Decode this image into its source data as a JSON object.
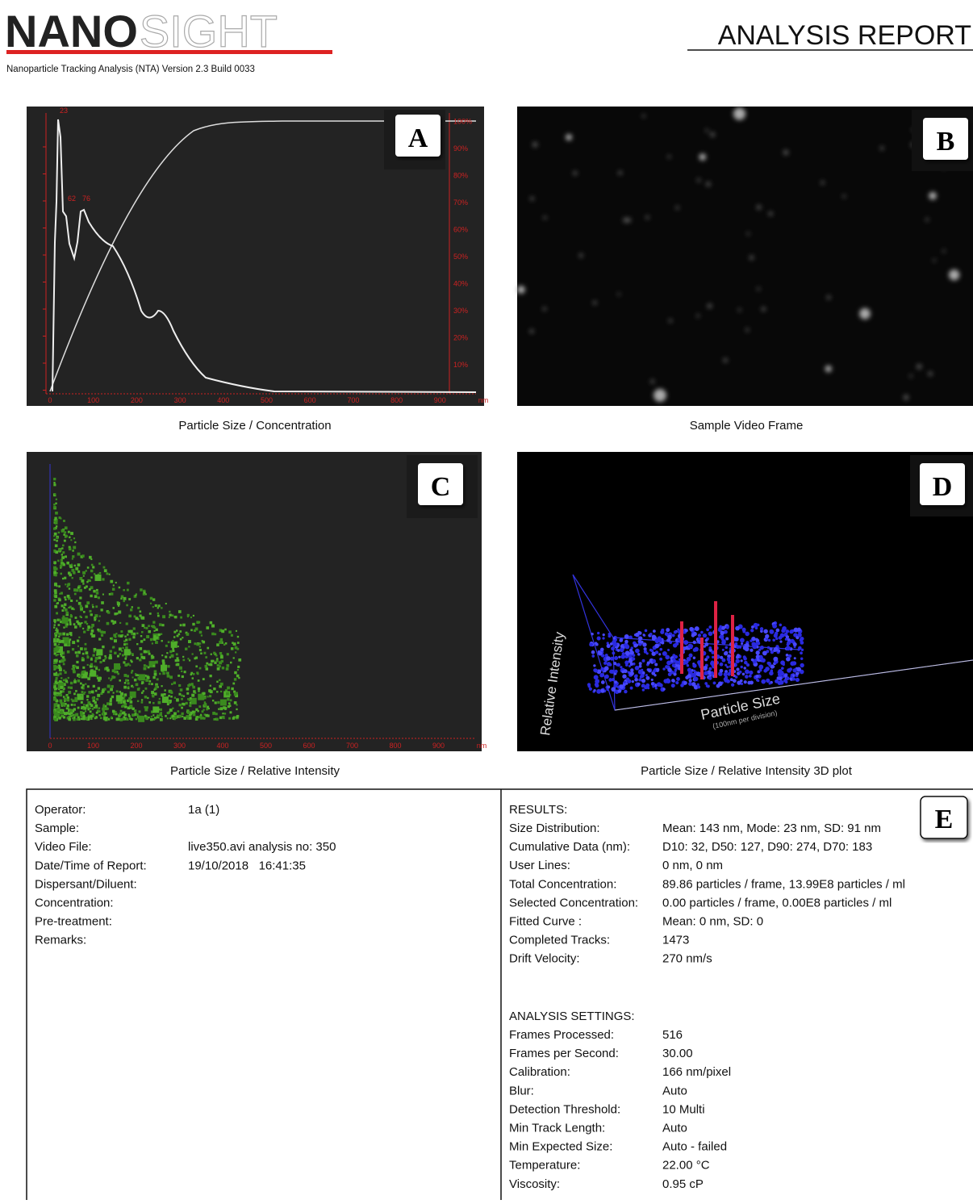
{
  "header": {
    "logo_bold": "NANO",
    "logo_light": "SIGHT",
    "subtitle": "Nanoparticle Tracking Analysis (NTA) Version 2.3 Build 0033",
    "title": "ANALYSIS REPORT"
  },
  "panels": [
    {
      "letter": "A",
      "caption": "Particle Size / Concentration",
      "peak_labels": [
        "23",
        "62",
        "76"
      ],
      "x_ticks": [
        "0",
        "100",
        "200",
        "300",
        "400",
        "500",
        "600",
        "700",
        "800",
        "900",
        "nm"
      ],
      "y2_ticks": [
        "10%",
        "20%",
        "30%",
        "40%",
        "50%",
        "60%",
        "70%",
        "80%",
        "90%",
        "100%"
      ]
    },
    {
      "letter": "B",
      "caption": "Sample Video Frame"
    },
    {
      "letter": "C",
      "caption": "Particle Size / Relative Intensity",
      "x_ticks": [
        "0",
        "100",
        "200",
        "300",
        "400",
        "500",
        "600",
        "700",
        "800",
        "900",
        "nm"
      ]
    },
    {
      "letter": "D",
      "caption": "Particle Size / Relative Intensity 3D plot",
      "z_label": "Relative Intensity",
      "x_label": "Particle Size",
      "x_sublabel": "(100nm per division)"
    }
  ],
  "info": {
    "letter": "E",
    "sample": [
      {
        "label": "Operator:",
        "value": "1a (1)"
      },
      {
        "label": "Sample:"
      },
      {
        "label": "Video File:",
        "value": "live350.avi analysis no: 350"
      },
      {
        "label": "Date/Time of Report:",
        "value": "19/10/2018   16:41:35"
      },
      {
        "label": "Dispersant/Diluent:"
      },
      {
        "label": "Concentration:"
      },
      {
        "label": "Pre-treatment:"
      },
      {
        "label": "Remarks:"
      }
    ],
    "results_title": "RESULTS:",
    "results": [
      {
        "label": "Size Distribution:",
        "value": "Mean: 143 nm, Mode: 23 nm, SD: 91 nm"
      },
      {
        "label": "Cumulative Data (nm):",
        "value": "D10: 32, D50: 127, D90: 274, D70: 183"
      },
      {
        "label": "User Lines:",
        "value": "0 nm, 0 nm"
      },
      {
        "label": "Total Concentration:",
        "value": "89.86 particles / frame, 13.99E8 particles / ml"
      },
      {
        "label": "Selected Concentration:",
        "value": "0.00 particles / frame, 0.00E8 particles / ml"
      },
      {
        "label": "Fitted Curve :",
        "value": "Mean: 0 nm, SD: 0"
      },
      {
        "label": "Completed Tracks:",
        "value": "1473"
      },
      {
        "label": "Drift Velocity:",
        "value": "270 nm/s"
      }
    ],
    "settings_title": "ANALYSIS SETTINGS:",
    "settings": [
      {
        "label": "Frames Processed:",
        "value": "516"
      },
      {
        "label": "Frames per Second:",
        "value": "30.00"
      },
      {
        "label": "Calibration:",
        "value": "166 nm/pixel"
      },
      {
        "label": "Blur:",
        "value": "Auto"
      },
      {
        "label": "Detection Threshold:",
        "value": "10 Multi"
      },
      {
        "label": "Min Track Length:",
        "value": "Auto"
      },
      {
        "label": "Min Expected Size:",
        "value": "Auto - failed"
      },
      {
        "label": "Temperature:",
        "value": "22.00 °C"
      },
      {
        "label": "Viscosity:",
        "value": "0.95 cP"
      }
    ]
  }
}
